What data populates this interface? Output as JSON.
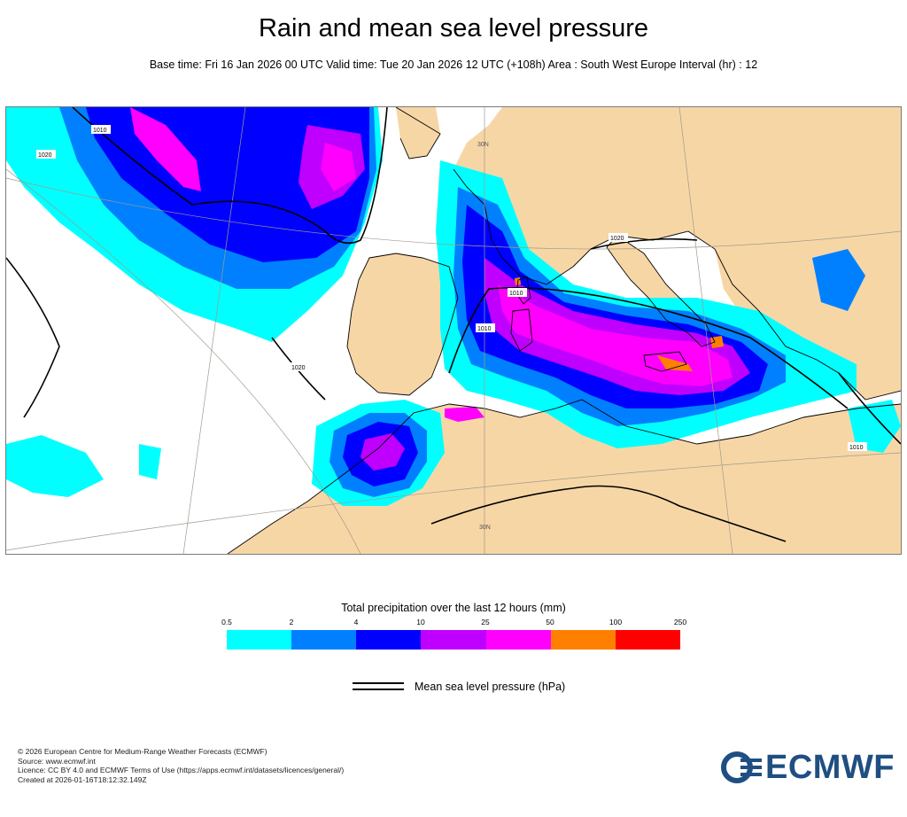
{
  "header": {
    "title": "Rain and mean sea level pressure",
    "subtitle": "Base time: Fri 16 Jan 2026 00 UTC Valid time: Tue 20 Jan 2026 12 UTC (+108h) Area : South West Europe Interval (hr) : 12"
  },
  "map": {
    "isobar_labels": [
      "1010",
      "1020",
      "1020",
      "1010",
      "1010",
      "1020",
      "1010"
    ],
    "graticule_labels": [
      "30N",
      "30N"
    ],
    "colors": {
      "land": "#f7d6a6",
      "sea": "#ffffff",
      "isobar": "#000000",
      "border": "#000000"
    }
  },
  "legend": {
    "title": "Total precipitation over the last 12 hours (mm)",
    "ticks": [
      "0.5",
      "2",
      "4",
      "10",
      "25",
      "50",
      "100",
      "250"
    ],
    "colors": [
      "#00ffff",
      "#0080ff",
      "#0000ff",
      "#c000ff",
      "#ff00ff",
      "#ff8000",
      "#ff0000"
    ],
    "isobar_label": "Mean sea level pressure (hPa)"
  },
  "footer": {
    "lines": [
      "© 2026 European Centre for Medium-Range Weather Forecasts (ECMWF)",
      "Source: www.ecmwf.int",
      "Licence: CC BY 4.0 and ECMWF Terms of Use (https://apps.ecmwf.int/datasets/licences/general/)",
      "Created at 2026-01-16T18:12:32.149Z"
    ],
    "logo_text": "ECMWF"
  }
}
